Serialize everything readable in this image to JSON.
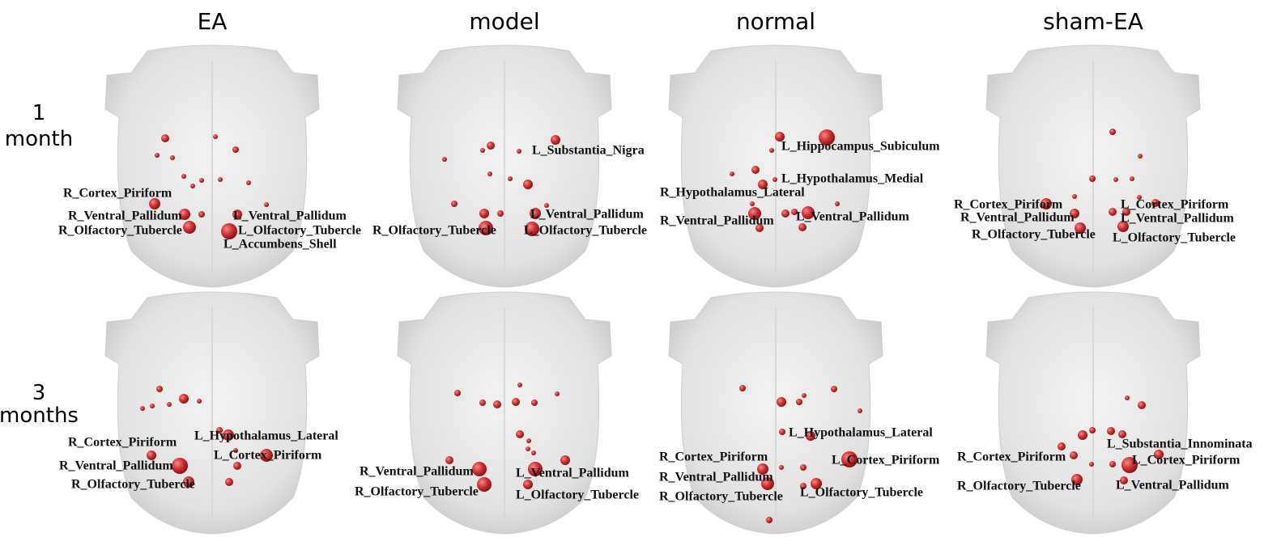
{
  "columns": [
    "EA",
    "model",
    "normal",
    "sham-EA"
  ],
  "rows": [
    [
      "1",
      "month"
    ],
    [
      "3",
      "months"
    ]
  ],
  "panels": [
    {
      "labels": [
        "R_Cortex_Piriform",
        "R_Ventral_Pallidum",
        "R_Olfactory_Tubercle",
        "L_Ventral_Pallidum",
        "L_Olfactory_Tubercle",
        "L_Accumbens_Shell"
      ]
    },
    {
      "labels": [
        "L_Substantia_Nigra",
        "L_Ventral_Pallidum",
        "R_Olfactory_Tubercle",
        "L_Olfactory_Tubercle"
      ]
    },
    {
      "labels": [
        "L_Hippocampus_Subiculum",
        "L_Hypothalamus_Medial",
        "R_Hypothalamus_Lateral",
        "R_Ventral_Pallidum",
        "L_Ventral_Pallidum"
      ]
    },
    {
      "labels": [
        "R_Cortex_Piriform",
        "L_Cortex_Piriform",
        "R_Ventral_Pallidum",
        "L_Ventral_Pallidum",
        "R_Olfactory_Tubercle",
        "L_Olfactory_Tubercle"
      ]
    },
    {
      "labels": [
        "R_Cortex_Piriform",
        "L_Hypothalamus_Lateral",
        "L_Cortex_Piriform",
        "R_Ventral_Pallidum",
        "R_Olfactory_Tubercle"
      ]
    },
    {
      "labels": [
        "R_Ventral_Pallidum",
        "L_Ventral_Pallidum",
        "R_Olfactory_Tubercle",
        "L_Olfactory_Tubercle"
      ]
    },
    {
      "labels": [
        "L_Hypothalamus_Lateral",
        "R_Cortex_Piriform",
        "L_Cortex_Piriform",
        "R_Ventral_Pallidum",
        "R_Olfactory_Tubercle",
        "L_Olfactory_Tubercle"
      ]
    },
    {
      "labels": [
        "L_Substantia_Innominata",
        "R_Cortex_Piriform",
        "L_Cortex_Piriform",
        "R_Olfactory_Tubercle",
        "L_Ventral_Pallidum"
      ]
    }
  ]
}
